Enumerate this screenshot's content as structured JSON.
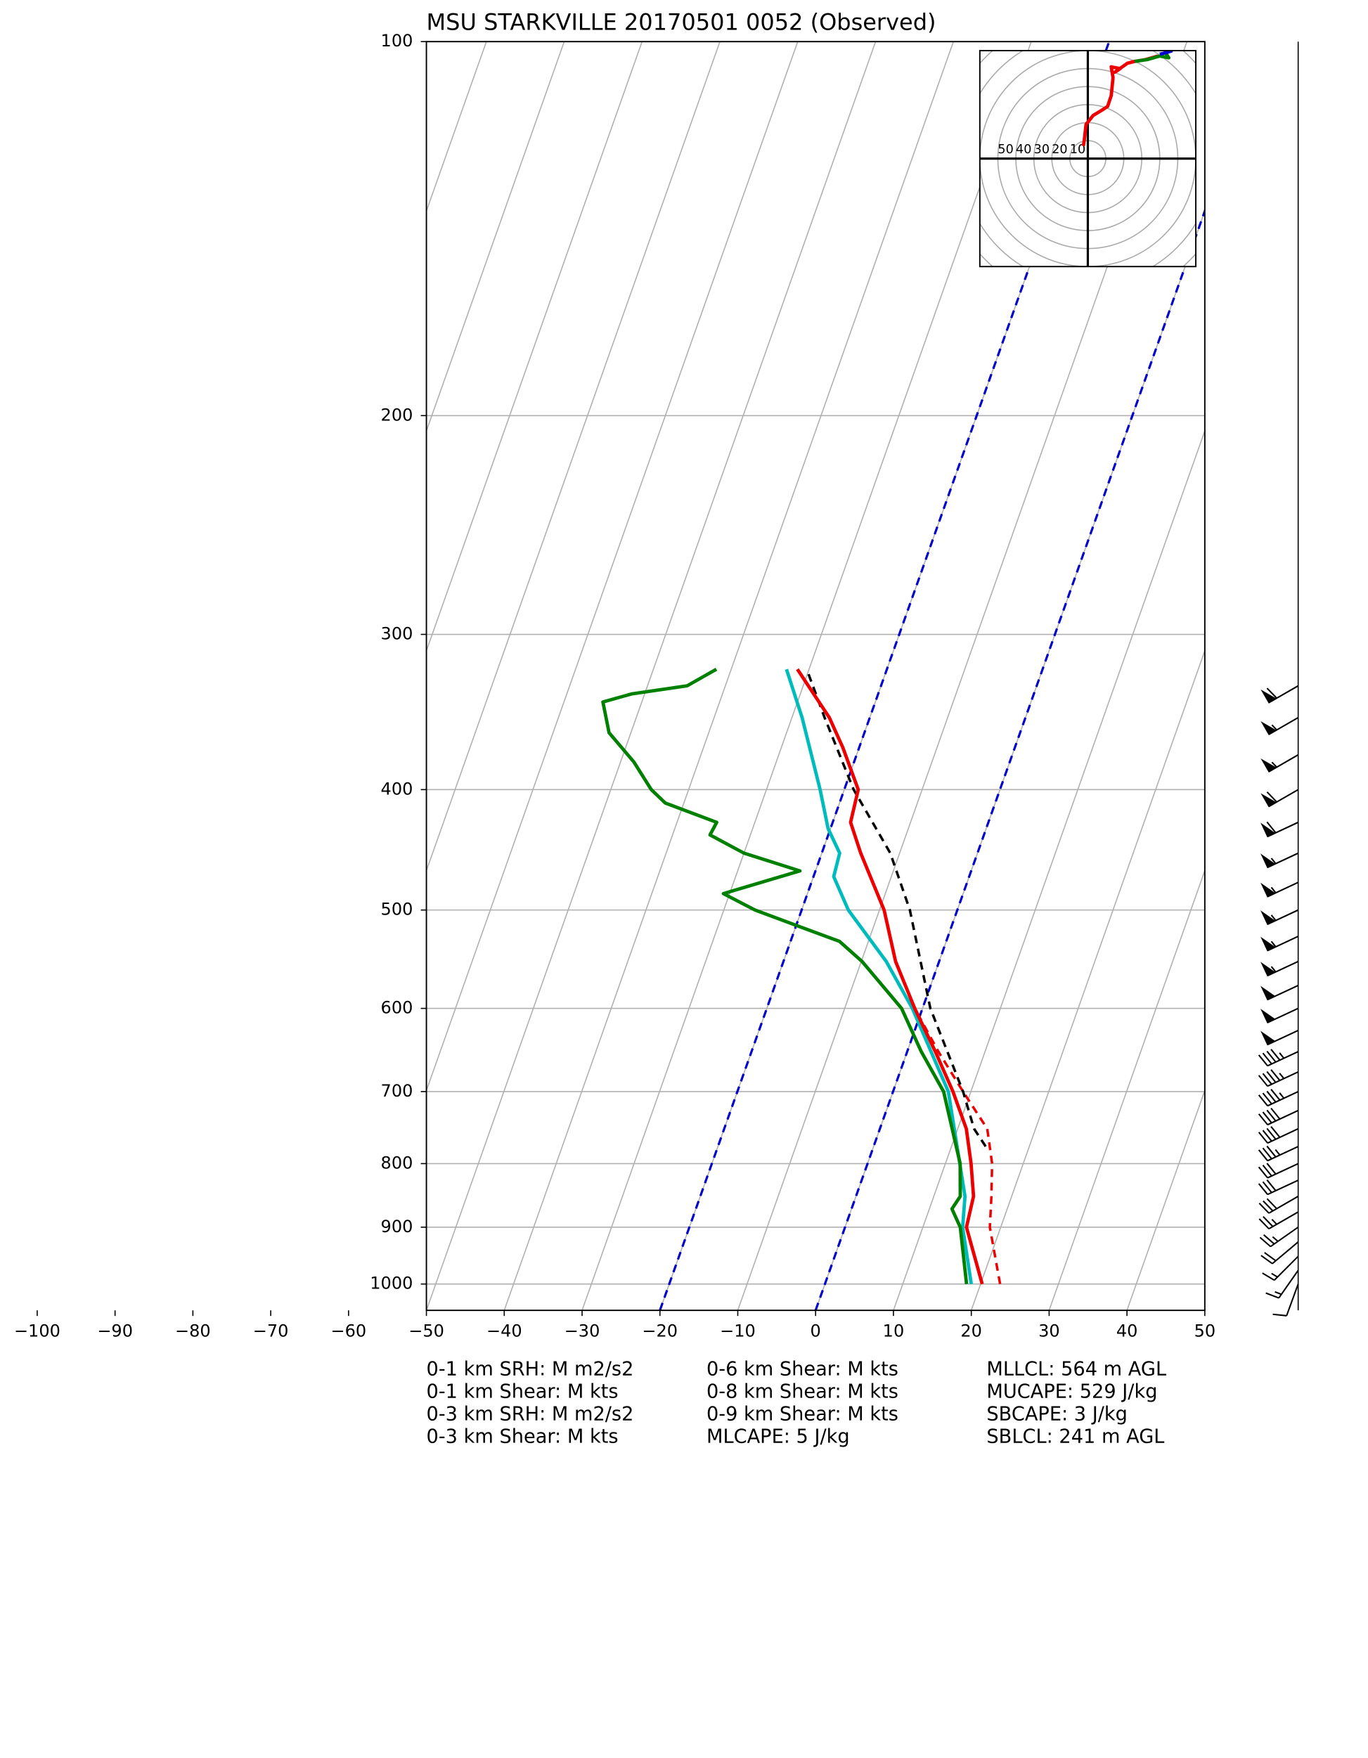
{
  "chart_data": {
    "type": "skewt",
    "title": "MSU STARKVILLE 20170501 0052   (Observed)",
    "xlim": [
      -50,
      50
    ],
    "xticks": [
      {
        "value": -100,
        "label": "−100"
      },
      {
        "value": -90,
        "label": "−90"
      },
      {
        "value": -80,
        "label": "−80"
      },
      {
        "value": -70,
        "label": "−70"
      },
      {
        "value": -60,
        "label": "−60"
      },
      {
        "value": -50,
        "label": "−50"
      },
      {
        "value": -40,
        "label": "−40"
      },
      {
        "value": -30,
        "label": "−30"
      },
      {
        "value": -20,
        "label": "−20"
      },
      {
        "value": -10,
        "label": "−10"
      },
      0,
      10,
      20,
      30,
      40,
      50
    ],
    "ylim": [
      1050,
      100
    ],
    "log_y": true,
    "yticks": [
      100,
      200,
      300,
      400,
      500,
      600,
      700,
      800,
      900,
      1000
    ],
    "grid": true,
    "highlight_isotherms": [
      -20,
      0
    ],
    "highlight_color": "#0000cc",
    "series": [
      {
        "color": "#00bbbb",
        "dashed": false,
        "pressure": [
          1000,
          900,
          850,
          700,
          600,
          550,
          500,
          470,
          450,
          430,
          400,
          350,
          320
        ],
        "values": [
          18.8,
          15.1,
          14.0,
          7.1,
          -1.3,
          -6.8,
          -14.0,
          -17.4,
          -17.7,
          -20.3,
          -23.1,
          -28.7,
          -32.9
        ]
      },
      {
        "color": "#ee0000",
        "dashed": true,
        "pressure": [
          1000,
          900,
          850,
          800,
          750,
          700,
          650,
          600
        ],
        "values": [
          22.5,
          18.6,
          17.4,
          16.0,
          13.8,
          9.0,
          4.0,
          -1.0
        ]
      },
      {
        "color": "#000000",
        "dashed": true,
        "pressure": [
          775,
          750,
          700,
          600,
          500,
          450,
          400,
          350,
          320
        ],
        "values": [
          14.4,
          12.1,
          9.0,
          1.0,
          -6.1,
          -11.2,
          -18.8,
          -25.8,
          -30.3
        ]
      },
      {
        "color": "#ee0000",
        "dashed": false,
        "pressure": [
          1000,
          900,
          850,
          800,
          750,
          700,
          650,
          600,
          550,
          500,
          450,
          425,
          400,
          370,
          350,
          320
        ],
        "values": [
          20.2,
          15.6,
          15.1,
          13.3,
          11.1,
          7.7,
          3.6,
          -1.0,
          -5.6,
          -9.4,
          -15.0,
          -17.7,
          -18.2,
          -22.1,
          -25.2,
          -31.5
        ]
      },
      {
        "color": "#008000",
        "dashed": false,
        "pressure": [
          1000,
          900,
          870,
          850,
          800,
          700,
          650,
          600,
          550,
          530,
          500,
          485,
          465,
          450,
          435,
          425,
          410,
          400,
          380,
          360,
          340,
          335,
          330,
          320
        ],
        "values": [
          18.2,
          14.8,
          12.9,
          13.4,
          11.9,
          6.5,
          1.8,
          -2.7,
          -9.9,
          -13.7,
          -26.0,
          -30.8,
          -22.0,
          -30.0,
          -35.2,
          -34.9,
          -42.4,
          -44.8,
          -48.3,
          -52.8,
          -55.0,
          -51.7,
          -44.9,
          -41.9
        ]
      }
    ],
    "barbs": {
      "pressure": [
        1000,
        975,
        950,
        925,
        900,
        875,
        850,
        825,
        800,
        775,
        750,
        725,
        700,
        675,
        650,
        625,
        600,
        575,
        550,
        525,
        500,
        475,
        450,
        425,
        400,
        375,
        350,
        330
      ],
      "speed": [
        10,
        15,
        15,
        20,
        25,
        25,
        30,
        30,
        30,
        35,
        40,
        40,
        45,
        45,
        45,
        50,
        50,
        50,
        55,
        55,
        55,
        55,
        55,
        60,
        60,
        55,
        55,
        60
      ],
      "direction": [
        200,
        215,
        225,
        230,
        235,
        240,
        240,
        245,
        245,
        245,
        245,
        245,
        245,
        245,
        245,
        245,
        245,
        245,
        245,
        245,
        245,
        245,
        245,
        245,
        240,
        240,
        240,
        240
      ]
    },
    "hodograph": {
      "lim": [
        -60,
        60
      ],
      "rings": [
        10,
        20,
        30,
        40,
        50,
        60,
        70,
        80
      ],
      "labeled_rings": [
        50,
        40,
        30,
        20,
        10
      ],
      "traces": [
        {
          "color": "#ee0000",
          "u": [
            -2.5,
            -2,
            -1,
            3,
            8,
            11,
            13,
            14,
            13,
            18,
            15,
            22,
            26,
            32,
            39
          ],
          "v": [
            7,
            10,
            19,
            24,
            27,
            29,
            35,
            45,
            51,
            50,
            48,
            53,
            54,
            55,
            57
          ]
        },
        {
          "color": "#008000",
          "u": [
            26,
            33,
            40,
            45,
            43
          ],
          "v": [
            54,
            55,
            57,
            56,
            59
          ]
        },
        {
          "color": "#0000cc",
          "u": [
            40,
            44,
            47
          ],
          "v": [
            58,
            59,
            60
          ]
        }
      ]
    },
    "stats": [
      [
        "0-1 km SRH: M m2/s2",
        "0-1 km Shear: M kts",
        "0-3 km SRH: M m2/s2",
        "0-3 km Shear: M kts"
      ],
      [
        "0-6 km Shear: M kts",
        "0-8 km Shear: M kts",
        "0-9 km Shear: M kts",
        "MLCAPE: 5 J/kg"
      ],
      [
        "MLLCL: 564 m AGL",
        "MUCAPE: 529 J/kg",
        "SBCAPE: 3 J/kg",
        "SBLCL: 241 m AGL"
      ]
    ]
  }
}
